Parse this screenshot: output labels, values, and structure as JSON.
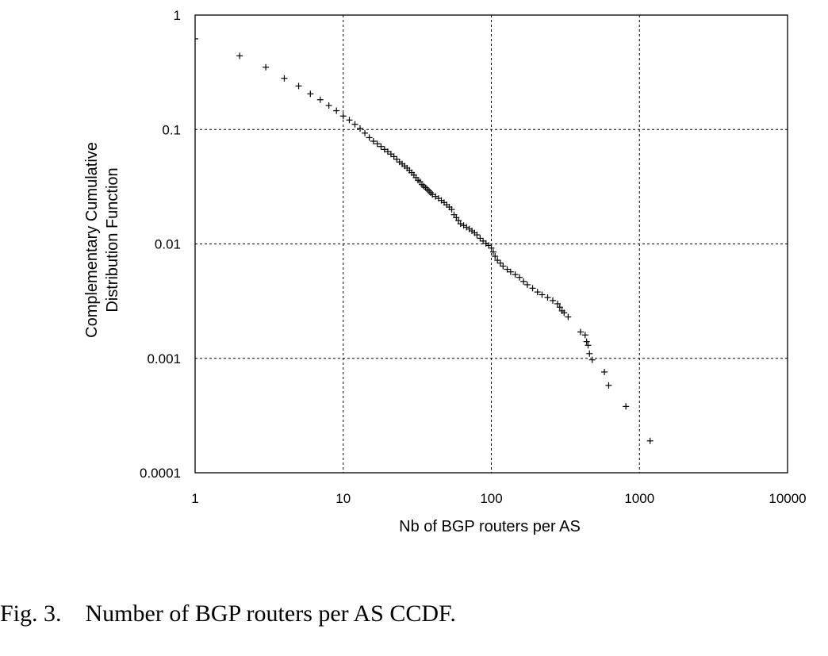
{
  "chart_data": {
    "type": "scatter",
    "x_scale": "log",
    "y_scale": "log",
    "xlim": [
      1,
      10000
    ],
    "ylim": [
      0.0001,
      1
    ],
    "grid": true,
    "marker": "+",
    "xlabel": "Nb of BGP routers per AS",
    "ylabel_lines": [
      "Complementary Cumulative",
      "Distribution Function"
    ],
    "x_ticks": [
      "1",
      "10",
      "100",
      "1000",
      "10000"
    ],
    "y_ticks": [
      "1",
      "0.1",
      "0.01",
      "0.001",
      "0.0001"
    ],
    "points": [
      [
        1,
        0.62
      ],
      [
        2,
        0.44
      ],
      [
        3,
        0.35
      ],
      [
        4,
        0.28
      ],
      [
        5,
        0.24
      ],
      [
        6,
        0.205
      ],
      [
        7,
        0.182
      ],
      [
        8,
        0.162
      ],
      [
        9,
        0.146
      ],
      [
        10,
        0.131
      ],
      [
        11,
        0.121
      ],
      [
        12,
        0.111
      ],
      [
        13,
        0.102
      ],
      [
        14,
        0.093
      ],
      [
        15,
        0.085
      ],
      [
        16,
        0.079
      ],
      [
        17,
        0.075
      ],
      [
        18,
        0.071
      ],
      [
        19,
        0.067
      ],
      [
        20,
        0.064
      ],
      [
        21,
        0.061
      ],
      [
        22,
        0.058
      ],
      [
        23,
        0.055
      ],
      [
        24,
        0.052
      ],
      [
        25,
        0.05
      ],
      [
        26,
        0.048
      ],
      [
        27,
        0.046
      ],
      [
        28,
        0.044
      ],
      [
        29,
        0.042
      ],
      [
        30,
        0.04
      ],
      [
        31,
        0.038
      ],
      [
        32,
        0.036
      ],
      [
        33,
        0.035
      ],
      [
        34,
        0.033
      ],
      [
        35,
        0.032
      ],
      [
        36,
        0.031
      ],
      [
        37,
        0.03
      ],
      [
        38,
        0.029
      ],
      [
        39,
        0.028
      ],
      [
        40,
        0.027
      ],
      [
        42,
        0.026
      ],
      [
        44,
        0.025
      ],
      [
        46,
        0.024
      ],
      [
        48,
        0.023
      ],
      [
        50,
        0.022
      ],
      [
        52,
        0.021
      ],
      [
        54,
        0.02
      ],
      [
        56,
        0.018
      ],
      [
        58,
        0.017
      ],
      [
        60,
        0.016
      ],
      [
        62,
        0.015
      ],
      [
        65,
        0.0145
      ],
      [
        68,
        0.014
      ],
      [
        71,
        0.0135
      ],
      [
        74,
        0.013
      ],
      [
        77,
        0.0125
      ],
      [
        80,
        0.012
      ],
      [
        84,
        0.0112
      ],
      [
        88,
        0.0106
      ],
      [
        92,
        0.0101
      ],
      [
        96,
        0.0097
      ],
      [
        100,
        0.0092
      ],
      [
        103,
        0.0085
      ],
      [
        106,
        0.0078
      ],
      [
        110,
        0.0072
      ],
      [
        115,
        0.0068
      ],
      [
        120,
        0.0064
      ],
      [
        128,
        0.006
      ],
      [
        135,
        0.0057
      ],
      [
        145,
        0.0054
      ],
      [
        155,
        0.0051
      ],
      [
        165,
        0.0047
      ],
      [
        175,
        0.0044
      ],
      [
        190,
        0.0041
      ],
      [
        205,
        0.0038
      ],
      [
        220,
        0.0036
      ],
      [
        240,
        0.0034
      ],
      [
        260,
        0.0032
      ],
      [
        280,
        0.003
      ],
      [
        290,
        0.0028
      ],
      [
        300,
        0.0026
      ],
      [
        310,
        0.0025
      ],
      [
        330,
        0.0023
      ],
      [
        400,
        0.0017
      ],
      [
        430,
        0.0016
      ],
      [
        440,
        0.0014
      ],
      [
        450,
        0.0013
      ],
      [
        460,
        0.0011
      ],
      [
        480,
        0.00097
      ],
      [
        580,
        0.00076
      ],
      [
        620,
        0.00058
      ],
      [
        810,
        0.00038
      ],
      [
        1180,
        0.00019
      ]
    ]
  },
  "caption": "Fig. 3.    Number of BGP routers per AS CCDF."
}
